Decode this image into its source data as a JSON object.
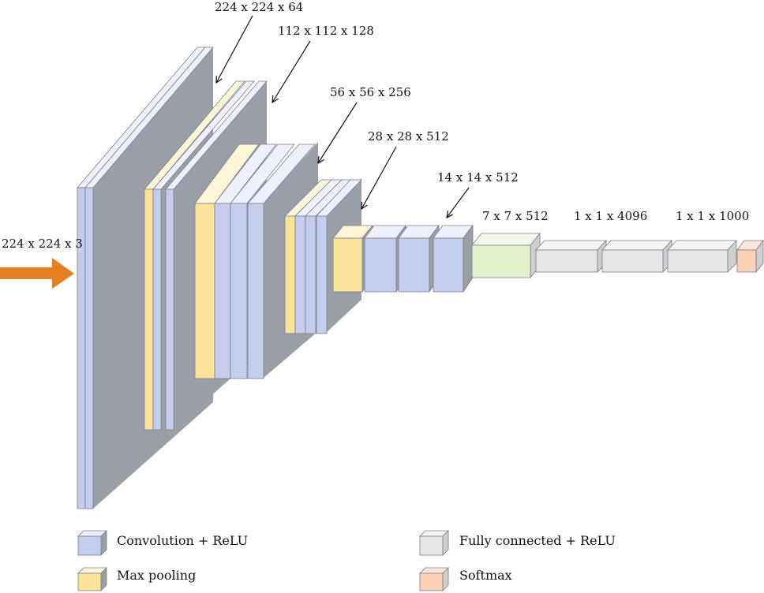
{
  "colors": {
    "conv_front": "#C5CCEC",
    "conv_top": "#EEF0FA",
    "pool_front": "#FBE39A",
    "pool_top": "#FFF6D8",
    "fc_front": "#E6E6E6",
    "fc_top": "#F4F4F4",
    "fc_side": "#CFCFCF",
    "first_fc_front": "#E2F2CF",
    "first_fc_top": "#F2F9EA",
    "softmax_front": "#FBD0B5",
    "softmax_top": "#FDE6D8",
    "shadow": "#9A9FA7",
    "arrow": "#E67E22",
    "stroke": "#7A7F8C"
  },
  "input": {
    "label": "224 x 224 x 3",
    "arrow_icon": "input-arrow-icon"
  },
  "stage_labels": [
    "224 x 224 x 64",
    "112 x 112 x 128",
    "56 x 56 x 256",
    "28 x 28 x 512",
    "14 x 14 x 512"
  ],
  "fc_labels": [
    "7 x 7 x 512",
    "1 x 1 x 4096",
    "1 x 1 x 1000"
  ],
  "legend": [
    {
      "key": "conv",
      "label": "Convolution + ReLU",
      "color": "#C5CCEC"
    },
    {
      "key": "pool",
      "label": "Max pooling",
      "color": "#FBE39A"
    },
    {
      "key": "fc",
      "label": "Fully connected + ReLU",
      "color": "#E6E6E6"
    },
    {
      "key": "softmax",
      "label": "Softmax",
      "color": "#FBD0B5"
    }
  ]
}
